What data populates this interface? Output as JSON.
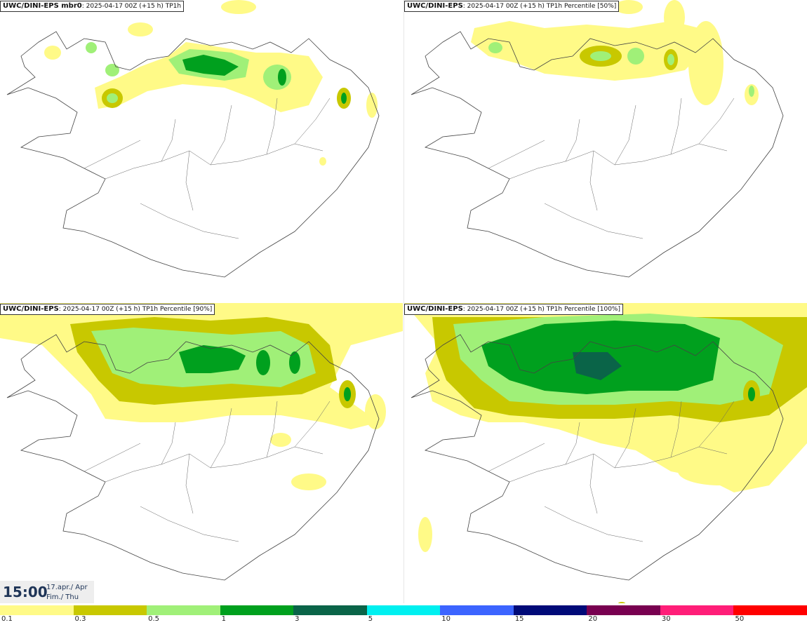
{
  "panels": [
    {
      "model": "UWC/DINI-EPS mbr0",
      "run": ": 2025-04-17 00Z (+15 h)",
      "product": " TP1h"
    },
    {
      "model": "UWC/DINI-EPS",
      "run": ": 2025-04-17 00Z (+15 h)",
      "product": " TP1h Percentile [50%]"
    },
    {
      "model": "UWC/DINI-EPS",
      "run": ": 2025-04-17 00Z (+15 h)",
      "product": " TP1h Percentile [90%]"
    },
    {
      "model": "UWC/DINI-EPS",
      "run": ": 2025-04-17 00Z (+15 h)",
      "product": " TP1h Percentile [100%]"
    }
  ],
  "time": {
    "hour": "15:00",
    "date_line1": "17.apr./ Apr",
    "date_line2": "Fim./ Thu"
  },
  "legend": {
    "levels": [
      "0.1",
      "0.3",
      "0.5",
      "1",
      "3",
      "5",
      "10",
      "15",
      "20",
      "30",
      "50"
    ],
    "colors": [
      "#fffa87",
      "#c8c800",
      "#a0f078",
      "#00a01e",
      "#0a6448",
      "#00f0f0",
      "#3c64ff",
      "#000a78",
      "#780050",
      "#ff1e78",
      "#ff0000"
    ]
  }
}
